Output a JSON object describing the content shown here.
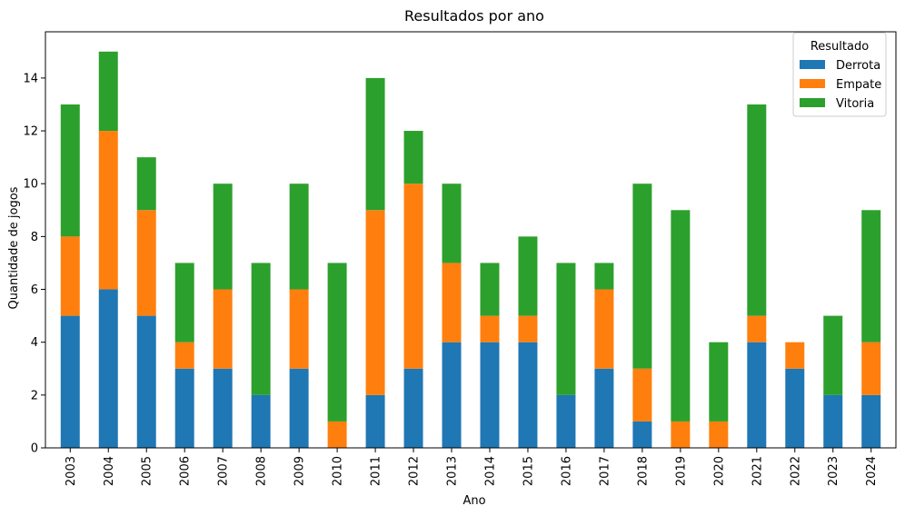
{
  "chart_data": {
    "type": "bar",
    "stacked": true,
    "title": "Resultados por ano",
    "xlabel": "Ano",
    "ylabel": "Quantidade de jogos",
    "ylim": [
      0,
      15.75
    ],
    "yticks": [
      0,
      2,
      4,
      6,
      8,
      10,
      12,
      14
    ],
    "grid": false,
    "legend": {
      "title": "Resultado",
      "position": "top-right"
    },
    "categories": [
      "2003",
      "2004",
      "2005",
      "2006",
      "2007",
      "2008",
      "2009",
      "2010",
      "2011",
      "2012",
      "2013",
      "2014",
      "2015",
      "2016",
      "2017",
      "2018",
      "2019",
      "2020",
      "2021",
      "2022",
      "2023",
      "2024"
    ],
    "series": [
      {
        "name": "Derrota",
        "color": "#1f77b4",
        "values": [
          5,
          6,
          5,
          3,
          3,
          2,
          3,
          0,
          2,
          3,
          4,
          4,
          4,
          2,
          3,
          1,
          0,
          0,
          4,
          3,
          2,
          2
        ]
      },
      {
        "name": "Empate",
        "color": "#ff7f0e",
        "values": [
          3,
          6,
          4,
          1,
          3,
          0,
          3,
          1,
          7,
          7,
          3,
          1,
          1,
          0,
          3,
          2,
          1,
          1,
          1,
          1,
          0,
          2
        ]
      },
      {
        "name": "Vitoria",
        "color": "#2ca02c",
        "values": [
          5,
          3,
          2,
          3,
          4,
          5,
          4,
          6,
          5,
          2,
          3,
          2,
          3,
          5,
          1,
          7,
          8,
          3,
          8,
          0,
          3,
          5
        ]
      }
    ]
  }
}
